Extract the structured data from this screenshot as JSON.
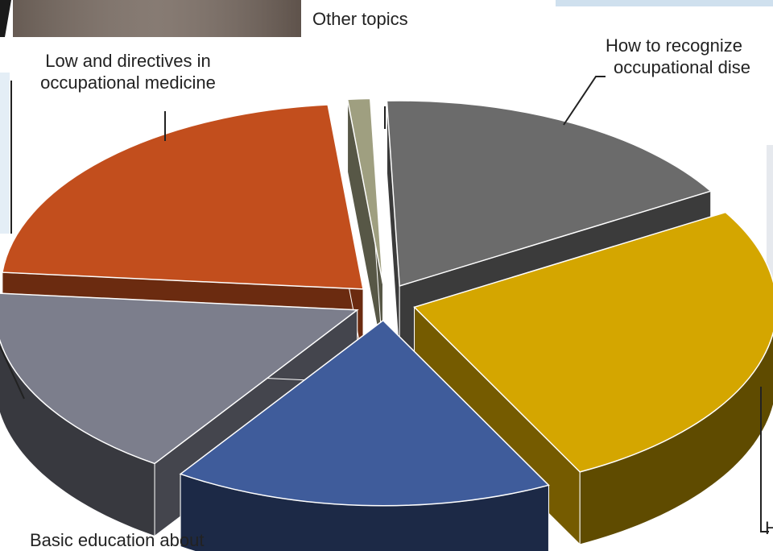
{
  "chart_data": {
    "type": "pie",
    "style": "3d-exploded",
    "title": "",
    "slices": [
      {
        "label": "How to recognize occupational dise",
        "value": 17,
        "color": "#6b6b6b"
      },
      {
        "label": "H",
        "value": 26,
        "color": "#d4a600"
      },
      {
        "label": "Basic education about",
        "value": 17,
        "color": "#3f5c9b"
      },
      {
        "label": "",
        "value": 17,
        "color": "#7c7e8c"
      },
      {
        "label": "Low and directives in occupational medicine",
        "value": 22,
        "color": "#c24e1d"
      },
      {
        "label": "Other topics",
        "value": 1,
        "color": "#9f9f80"
      }
    ]
  },
  "labels": {
    "other": "Other topics",
    "how_line1": "How to recognize",
    "how_line2": "occupational dise",
    "low_line1": "Low and directives in",
    "low_line2": "occupational medicine",
    "basic_line1": "Basic education about",
    "h_label": "H"
  }
}
